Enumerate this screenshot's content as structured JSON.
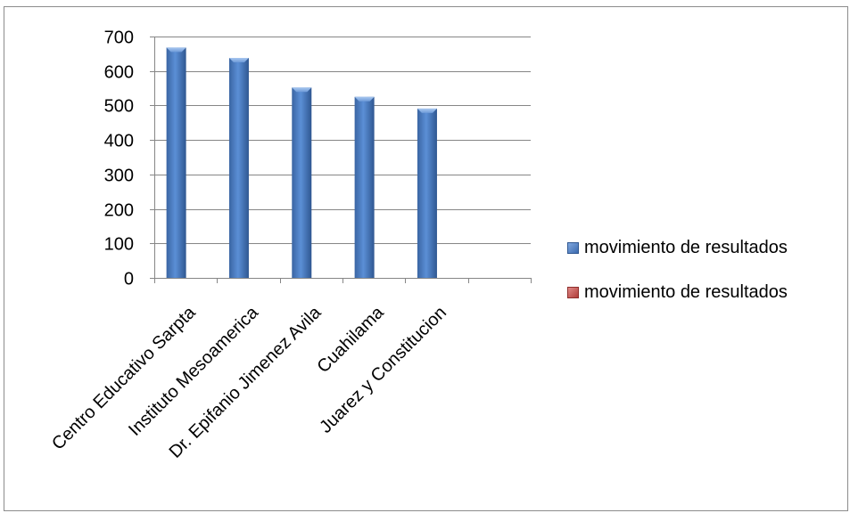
{
  "chart_data": {
    "type": "bar",
    "categories": [
      "Centro Educativo Sarpta",
      "Instituto Mesoamerica",
      "Dr. Epifanio Jimenez Avila",
      "Cuahilama",
      "Juarez y Constitucion",
      ""
    ],
    "series": [
      {
        "name": "movimiento de resultados",
        "values": [
          668,
          638,
          552,
          525,
          491,
          null
        ],
        "color": "#4f81bd"
      },
      {
        "name": "movimiento de resultados",
        "values": [
          null,
          null,
          null,
          null,
          null,
          null
        ],
        "color": "#c0504d"
      }
    ],
    "y_ticks": [
      "0",
      "100",
      "200",
      "300",
      "400",
      "500",
      "600",
      "700"
    ],
    "ylim": [
      0,
      700
    ],
    "grid": true,
    "legend_position": "right",
    "title": "",
    "xlabel": "",
    "ylabel": ""
  }
}
